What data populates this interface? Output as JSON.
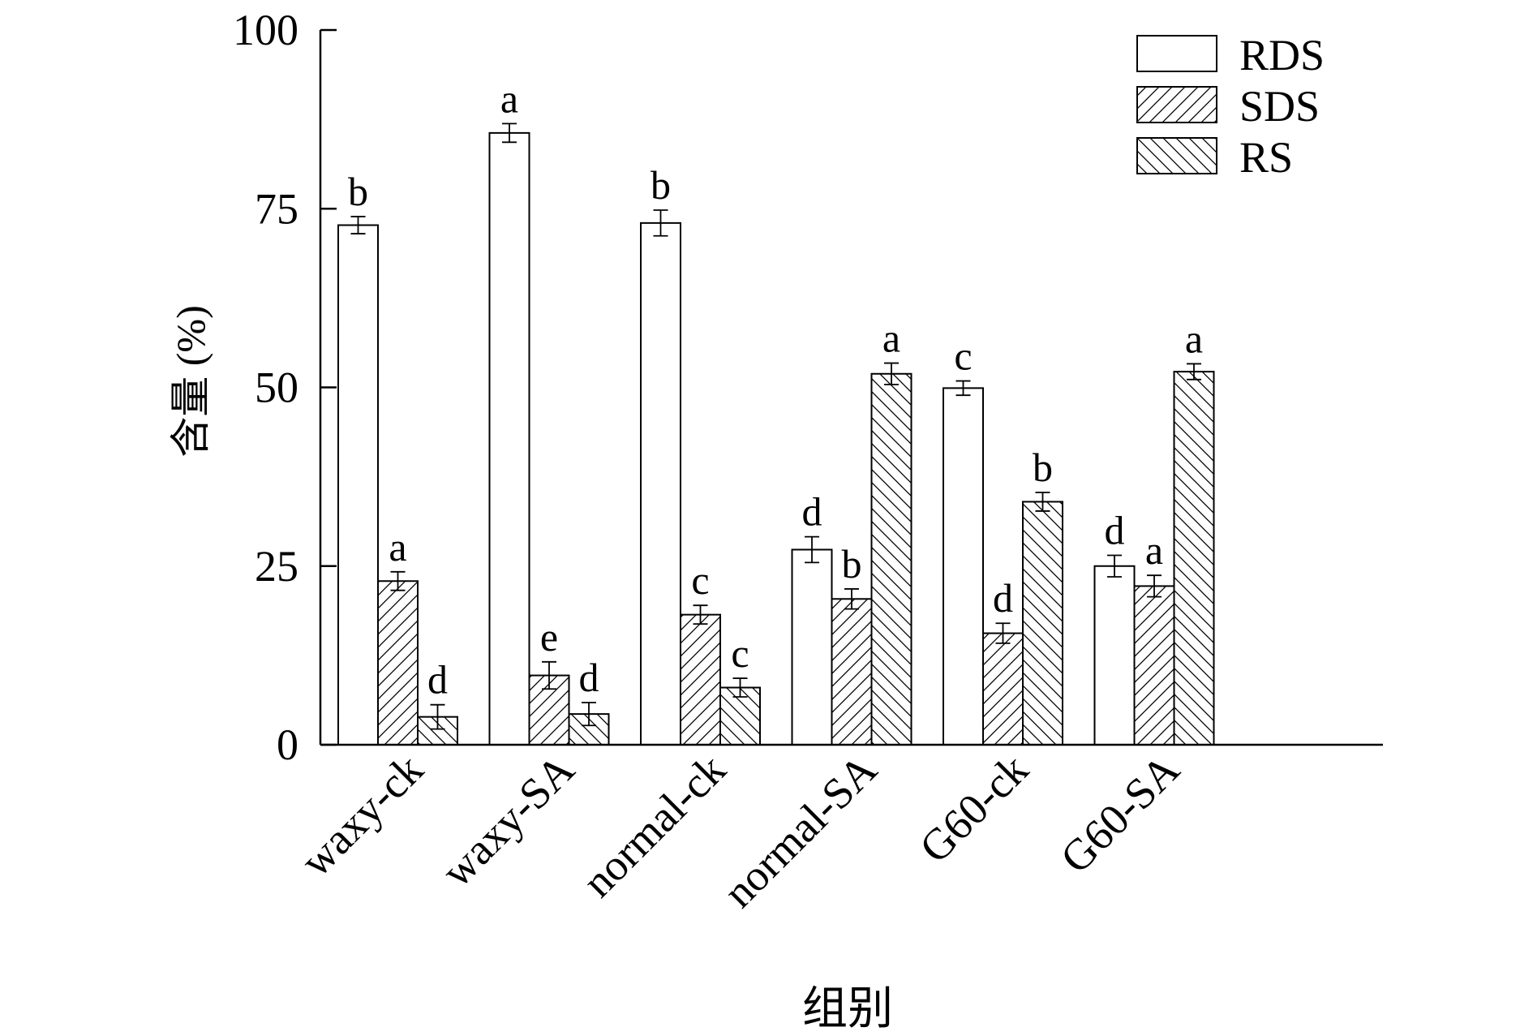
{
  "chart_data": {
    "type": "bar",
    "title": "",
    "xlabel": "组别",
    "ylabel": "含量 (%)",
    "ylim": [
      0,
      100
    ],
    "yticks": [
      "0",
      "25",
      "50",
      "75",
      "100"
    ],
    "categories": [
      "waxy-ck",
      "waxy-SA",
      "normal-ck",
      "normal-SA",
      "G60-ck",
      "G60-SA"
    ],
    "legend_position": "top-right",
    "series": [
      {
        "name": "RDS",
        "pattern": "none",
        "values": [
          72.7,
          85.6,
          73.0,
          27.3,
          49.9,
          25.0
        ],
        "errors": [
          1.2,
          1.3,
          1.8,
          1.8,
          1.0,
          1.5
        ],
        "letters": [
          "b",
          "a",
          "b",
          "d",
          "c",
          "d"
        ]
      },
      {
        "name": "SDS",
        "pattern": "forward-hatch",
        "values": [
          22.9,
          9.7,
          18.2,
          20.4,
          15.6,
          22.2
        ],
        "errors": [
          1.3,
          1.9,
          1.3,
          1.4,
          1.4,
          1.5
        ],
        "letters": [
          "a",
          "e",
          "c",
          "b",
          "d",
          "a"
        ]
      },
      {
        "name": "RS",
        "pattern": "back-hatch",
        "values": [
          3.9,
          4.3,
          8.0,
          51.9,
          34.0,
          52.2
        ],
        "errors": [
          1.7,
          1.6,
          1.3,
          1.5,
          1.3,
          1.1
        ],
        "letters": [
          "d",
          "d",
          "c",
          "a",
          "b",
          "a"
        ]
      }
    ]
  }
}
